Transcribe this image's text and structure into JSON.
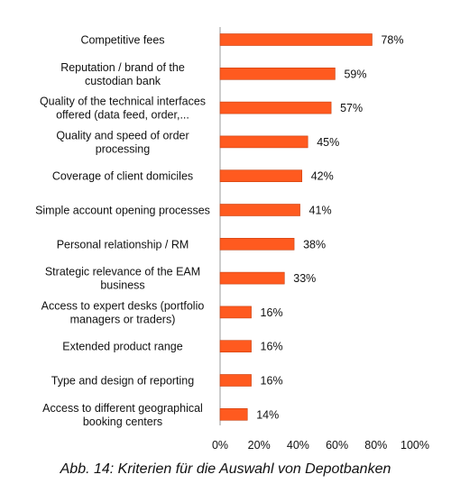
{
  "chart_data": {
    "type": "bar",
    "orientation": "horizontal",
    "categories": [
      [
        "Competitive fees"
      ],
      [
        "Reputation / brand of the",
        "custodian bank"
      ],
      [
        "Quality of the technical interfaces",
        "offered (data feed, order,..."
      ],
      [
        "Quality and speed of order",
        "processing"
      ],
      [
        "Coverage of client domiciles"
      ],
      [
        "Simple account opening processes"
      ],
      [
        "Personal relationship / RM"
      ],
      [
        "Strategic relevance of the EAM",
        "business"
      ],
      [
        "Access to expert desks (portfolio",
        "managers or traders)"
      ],
      [
        "Extended product range"
      ],
      [
        "Type and design of reporting"
      ],
      [
        "Access to different geographical",
        "booking centers"
      ]
    ],
    "values": [
      78,
      59,
      57,
      45,
      42,
      41,
      38,
      33,
      16,
      16,
      16,
      14
    ],
    "value_labels": [
      "78%",
      "59%",
      "57%",
      "45%",
      "42%",
      "41%",
      "38%",
      "33%",
      "16%",
      "16%",
      "16%",
      "14%"
    ],
    "xlim": [
      0,
      100
    ],
    "x_ticks": [
      0,
      20,
      40,
      60,
      80,
      100
    ],
    "x_tick_labels": [
      "0%",
      "20%",
      "40%",
      "60%",
      "80%",
      "100%"
    ],
    "grid": false,
    "bar_color": "#ff5a1f",
    "bar_edge_color": "#c8400f"
  },
  "caption": "Abb. 14: Kriterien für die Auswahl von Depotbanken"
}
